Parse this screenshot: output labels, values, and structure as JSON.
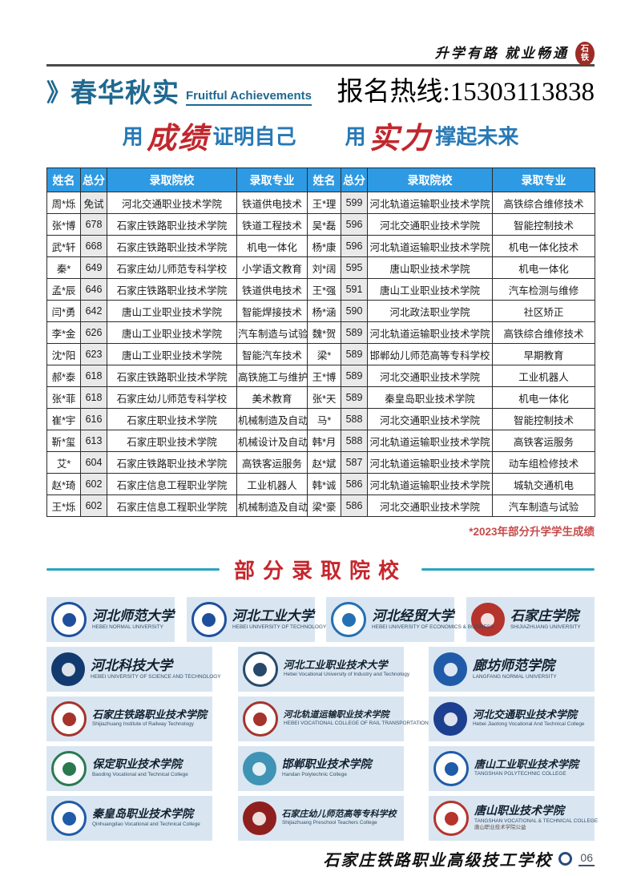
{
  "topbar": {
    "slogan": "升学有路  就业畅通",
    "seal": "石铁"
  },
  "header": {
    "marker": "》",
    "title": "春华秋实",
    "subtitle": "Fruitful Achievements",
    "hotline": "报名热线:15303113838"
  },
  "slogan": {
    "p1": "用",
    "hl1": "成绩",
    "p2": "证明自己",
    "p3": "用",
    "hl2": "实力",
    "p4": "撑起未来"
  },
  "table": {
    "headers": [
      "姓名",
      "总分",
      "录取院校",
      "录取专业",
      "姓名",
      "总分",
      "录取院校",
      "录取专业"
    ],
    "rows": [
      [
        "周*烁",
        "免试",
        "河北交通职业技术学院",
        "铁道供电技术",
        "王*理",
        "599",
        "河北轨道运输职业技术学院",
        "高铁综合维修技术"
      ],
      [
        "张*博",
        "678",
        "石家庄铁路职业技术学院",
        "铁道工程技术",
        "吴*磊",
        "596",
        "河北交通职业技术学院",
        "智能控制技术"
      ],
      [
        "武*轩",
        "668",
        "石家庄铁路职业技术学院",
        "机电一体化",
        "杨*康",
        "596",
        "河北轨道运输职业技术学院",
        "机电一体化技术"
      ],
      [
        "秦*",
        "649",
        "石家庄幼儿师范专科学校",
        "小学语文教育",
        "刘*阔",
        "595",
        "唐山职业技术学院",
        "机电一体化"
      ],
      [
        "孟*辰",
        "646",
        "石家庄铁路职业技术学院",
        "铁道供电技术",
        "王*强",
        "591",
        "唐山工业职业技术学院",
        "汽车检测与维修"
      ],
      [
        "闫*勇",
        "642",
        "唐山工业职业技术学院",
        "智能焊接技术",
        "杨*涵",
        "590",
        "河北政法职业学院",
        "社区矫正"
      ],
      [
        "李*金",
        "626",
        "唐山工业职业技术学院",
        "汽车制造与试验",
        "魏*贺",
        "589",
        "河北轨道运输职业技术学院",
        "高铁综合维修技术"
      ],
      [
        "沈*阳",
        "623",
        "唐山工业职业技术学院",
        "智能汽车技术",
        "梁*",
        "589",
        "邯郸幼儿师范高等专科学校",
        "早期教育"
      ],
      [
        "郝*泰",
        "618",
        "石家庄铁路职业技术学院",
        "高铁施工与维护",
        "王*博",
        "589",
        "河北交通职业技术学院",
        "工业机器人"
      ],
      [
        "张*菲",
        "618",
        "石家庄幼儿师范专科学校",
        "美术教育",
        "张*天",
        "589",
        "秦皇岛职业技术学院",
        "机电一体化"
      ],
      [
        "崔*宇",
        "616",
        "石家庄职业技术学院",
        "机械制造及自动化",
        "马*",
        "588",
        "河北交通职业技术学院",
        "智能控制技术"
      ],
      [
        "靳*玺",
        "613",
        "石家庄职业技术学院",
        "机械设计及自动化",
        "韩*月",
        "588",
        "河北轨道运输职业技术学院",
        "高铁客运服务"
      ],
      [
        "艾*",
        "604",
        "石家庄铁路职业技术学院",
        "高铁客运服务",
        "赵*斌",
        "587",
        "河北轨道运输职业技术学院",
        "动车组检修技术"
      ],
      [
        "赵*琦",
        "602",
        "石家庄信息工程职业学院",
        "工业机器人",
        "韩*诚",
        "586",
        "河北轨道运输职业技术学院",
        "城轨交通机电"
      ],
      [
        "王*烁",
        "602",
        "石家庄信息工程职业学院",
        "机械制造及自动化",
        "梁*豪",
        "586",
        "河北交通职业技术学院",
        "汽车制造与试验"
      ]
    ],
    "note": "*2023年部分升学学生成绩"
  },
  "colleges": {
    "title": "部分录取院校",
    "rows": [
      [
        {
          "name": "河北师范大学",
          "en": "HEBEI NORMAL UNIVERSITY",
          "color": "#1e4f9c",
          "style": "ring"
        },
        {
          "name": "河北工业大学",
          "en": "HEBEI UNIVERSITY OF TECHNOLOGY",
          "color": "#1e4f9c",
          "style": "ring"
        },
        {
          "name": "河北经贸大学",
          "en": "HEBEI UNIVERSITY OF ECONOMICS & BUSINESS",
          "color": "#2470b3",
          "style": "ring"
        },
        {
          "name": "石家庄学院",
          "en": "SHIJIAZHUANG UNIVERSITY",
          "color": "#b5342c",
          "style": "disc"
        }
      ],
      [
        {
          "name": "河北科技大学",
          "en": "HEBEI UNIVERSITY OF SCIENCE AND TECHNOLOGY",
          "color": "#123a6e",
          "style": "disc"
        },
        {
          "name": "河北工业职业技术大学",
          "en": "Hebei Vocational University of Industry and Technology",
          "color": "#27496b",
          "style": "ring"
        },
        {
          "name": "廊坊师范学院",
          "en": "LANGFANG NORMAL UNIVERSITY",
          "color": "#1f5ba8",
          "style": "disc"
        }
      ],
      [
        {
          "name": "石家庄铁路职业技术学院",
          "en": "Shijiazhuang Institute of Railway Technology",
          "color": "#a5342c",
          "style": "ring"
        },
        {
          "name": "河北轨道运输职业技术学院",
          "en": "HEBEI VOCATIONAL COLLEGE OF RAIL TRANSPORTATION",
          "color": "#a5342c",
          "style": "ring"
        },
        {
          "name": "河北交通职业技术学院",
          "en": "Hebei Jiaotong Vocational And Technical College",
          "color": "#1d3f8f",
          "style": "disc"
        }
      ],
      [
        {
          "name": "保定职业技术学院",
          "en": "Baoding Vocational and Technical College",
          "color": "#2a7a4f",
          "style": "ring"
        },
        {
          "name": "邯郸职业技术学院",
          "en": "Handan Polytechnic College",
          "color": "#3f93b5",
          "style": "disc"
        },
        {
          "name": "唐山工业职业技术学院",
          "en": "TANGSHAN POLYTECHNIC COLLEGE",
          "color": "#1f5ba8",
          "style": "ring"
        }
      ],
      [
        {
          "name": "秦皇岛职业技术学院",
          "en": "Qinhuangdao Vocational and Technical College",
          "color": "#1f5ba8",
          "style": "ring"
        },
        {
          "name": "石家庄幼儿师范高等专科学校",
          "en": "Shijiazhuang Preschool Teachers College",
          "color": "#8f1f1f",
          "style": "disc"
        },
        {
          "name": "唐山职业技术学院",
          "en": "TANGSHAN VOCATIONAL & TECHNICAL COLLEGE",
          "sub": "唐山职业技术学院公益",
          "color": "#b5342c",
          "style": "ring"
        }
      ]
    ]
  },
  "footer": {
    "school": "石家庄铁路职业高级技工学校",
    "page": "06"
  },
  "colors": {
    "table_header_blue": "#2d9ae3",
    "title_blue": "#20688f",
    "slogan_blue": "#2779b5",
    "accent_red": "#c1272d",
    "divider_teal": "#2aa3c4",
    "panel_bg": "#d9e6f1",
    "score_cell_bg": "#e9e9e9",
    "seal_red": "#9e2b25"
  }
}
